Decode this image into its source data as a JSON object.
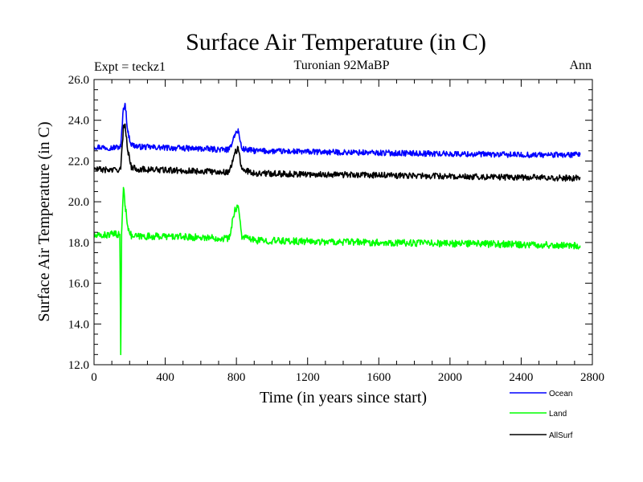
{
  "chart_data": {
    "type": "line",
    "title": "Surface Air Temperature (in C)",
    "subtitle_left": "Expt = teckz1",
    "subtitle_center": "Turonian  92MaBP",
    "subtitle_right": "Ann",
    "xlabel": "Time (in years since start)",
    "ylabel": "Surface Air Temperature (in C)",
    "xlim": [
      0,
      2800
    ],
    "ylim": [
      12,
      26
    ],
    "x_ticks": [
      0,
      400,
      800,
      1200,
      1600,
      2000,
      2400,
      2800
    ],
    "y_ticks": [
      12,
      14,
      16,
      18,
      20,
      22,
      24,
      26
    ],
    "x_tick_labels": [
      "0",
      "400",
      "800",
      "1200",
      "1600",
      "2000",
      "2400",
      "2800"
    ],
    "y_tick_labels": [
      "12.0",
      "14.0",
      "16.0",
      "18.0",
      "20.0",
      "22.0",
      "24.0",
      "26.0"
    ],
    "series": [
      {
        "name": "Ocean",
        "color": "#0000ff",
        "x": [
          0,
          100,
          150,
          165,
          175,
          190,
          210,
          250,
          400,
          600,
          760,
          790,
          810,
          830,
          900,
          1200,
          1600,
          2000,
          2400,
          2730
        ],
        "values": [
          22.7,
          22.65,
          22.7,
          24.6,
          24.8,
          23.4,
          22.8,
          22.7,
          22.65,
          22.6,
          22.55,
          23.3,
          23.5,
          22.6,
          22.5,
          22.45,
          22.4,
          22.35,
          22.3,
          22.3
        ]
      },
      {
        "name": "Land",
        "color": "#00ff00",
        "x": [
          0,
          100,
          145,
          150,
          155,
          165,
          175,
          190,
          210,
          250,
          400,
          600,
          760,
          790,
          810,
          830,
          900,
          1200,
          1600,
          2000,
          2400,
          2730
        ],
        "values": [
          18.3,
          18.4,
          18.4,
          12.5,
          18.5,
          20.7,
          19.8,
          18.8,
          18.3,
          18.3,
          18.3,
          18.25,
          18.2,
          19.6,
          19.8,
          18.3,
          18.1,
          18.05,
          18.0,
          17.95,
          17.9,
          17.85
        ]
      },
      {
        "name": "AllSurf",
        "color": "#000000",
        "x": [
          0,
          100,
          150,
          165,
          175,
          190,
          210,
          250,
          400,
          600,
          760,
          790,
          810,
          830,
          900,
          1200,
          1600,
          2000,
          2400,
          2730
        ],
        "values": [
          21.6,
          21.55,
          21.6,
          23.6,
          23.8,
          22.5,
          21.7,
          21.6,
          21.55,
          21.5,
          21.45,
          22.4,
          22.6,
          21.6,
          21.4,
          21.35,
          21.3,
          21.25,
          21.2,
          21.15
        ]
      }
    ],
    "legend_position": "bottom-right"
  }
}
